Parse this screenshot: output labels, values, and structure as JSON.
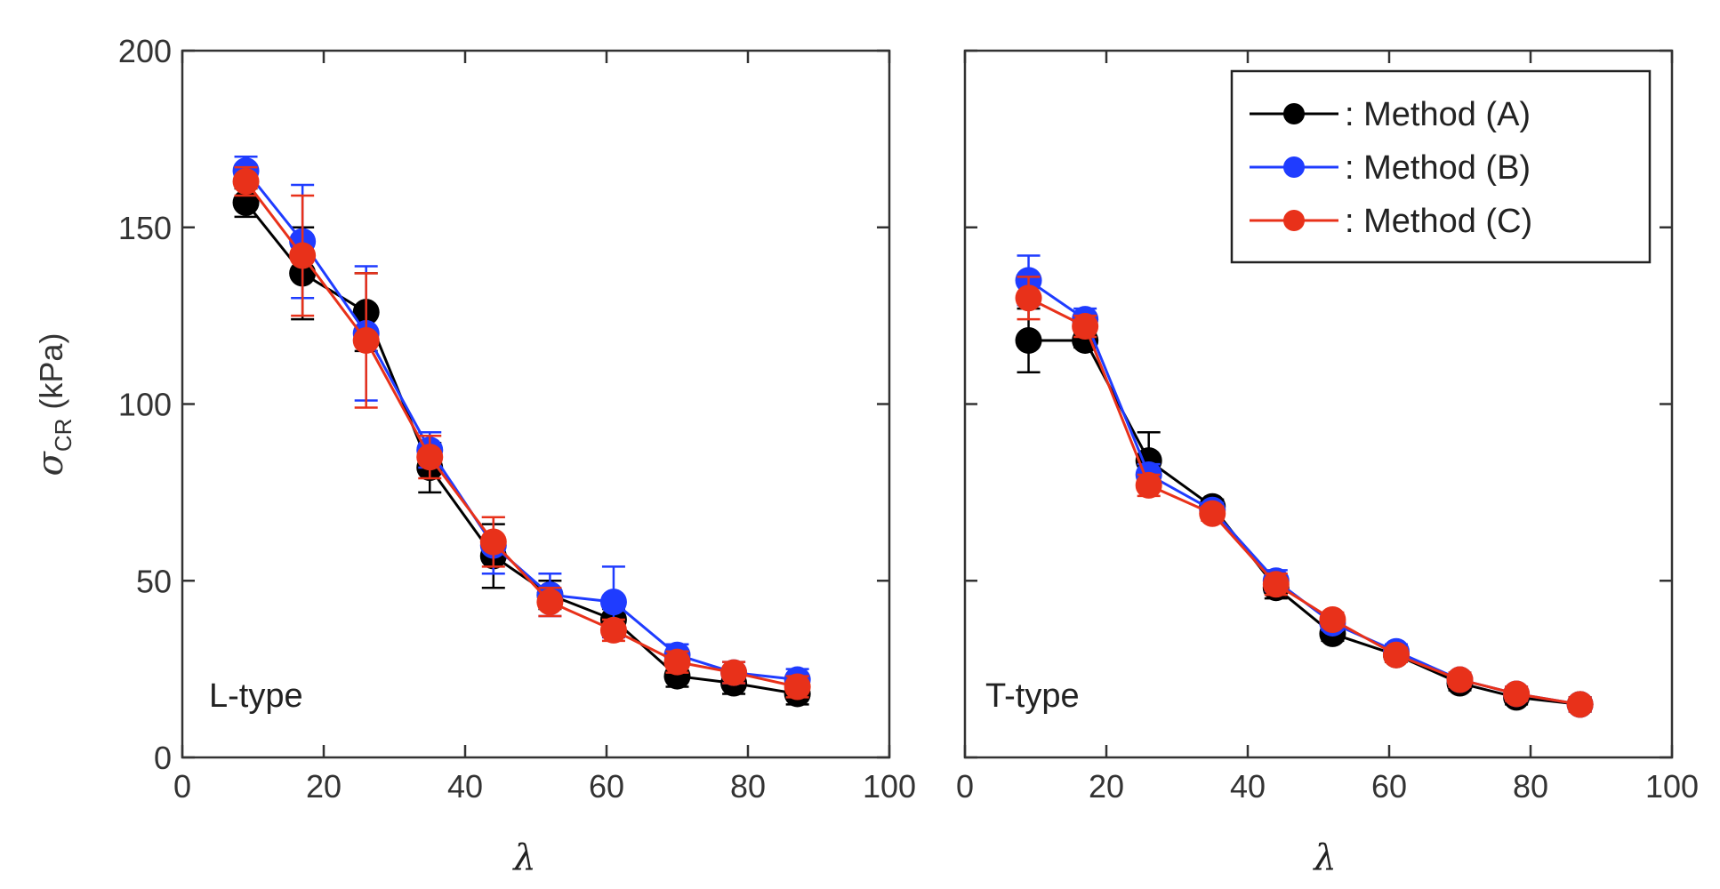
{
  "chart_data": [
    {
      "type": "line",
      "panel_label": "L-type",
      "xlabel": "λ",
      "ylabel": {
        "symbol": "σ",
        "subscript": "CR",
        "unit": "(kPa)"
      },
      "xlim": [
        0,
        100
      ],
      "ylim": [
        0,
        200
      ],
      "xticks": [
        "0",
        "20",
        "40",
        "60",
        "80",
        "100"
      ],
      "yticks": [
        "0",
        "50",
        "100",
        "150",
        "200"
      ],
      "x": [
        9,
        17,
        26,
        35,
        44,
        52,
        61,
        70,
        78,
        87
      ],
      "series": [
        {
          "name": "Method (A)",
          "color": "#000000",
          "values": [
            157,
            137,
            126,
            82,
            57,
            46,
            39,
            23,
            21,
            18
          ],
          "errors": [
            4,
            13,
            11,
            7,
            9,
            4,
            3,
            3,
            3,
            3
          ]
        },
        {
          "name": "Method (B)",
          "color": "#1f3cff",
          "values": [
            166,
            146,
            120,
            87,
            60,
            46,
            44,
            29,
            24,
            22
          ],
          "errors": [
            4,
            16,
            19,
            5,
            8,
            6,
            10,
            3,
            3,
            3
          ]
        },
        {
          "name": "Method (C)",
          "color": "#e8311a",
          "values": [
            163,
            142,
            118,
            85,
            61,
            44,
            36,
            27,
            24,
            20
          ],
          "errors": [
            4,
            17,
            19,
            6,
            7,
            4,
            3,
            3,
            3,
            3
          ]
        }
      ]
    },
    {
      "type": "line",
      "panel_label": "T-type",
      "xlabel": "λ",
      "xlim": [
        0,
        100
      ],
      "ylim": [
        0,
        200
      ],
      "xticks": [
        "0",
        "20",
        "40",
        "60",
        "80",
        "100"
      ],
      "yticks": [],
      "x": [
        9,
        17,
        26,
        35,
        44,
        52,
        61,
        70,
        78,
        87
      ],
      "series": [
        {
          "name": "Method (A)",
          "color": "#000000",
          "values": [
            118,
            118,
            84,
            71,
            48,
            35,
            29,
            21,
            17,
            15
          ],
          "errors": [
            9,
            2,
            8,
            2,
            3,
            2,
            2,
            2,
            2,
            2
          ]
        },
        {
          "name": "Method (B)",
          "color": "#1f3cff",
          "values": [
            135,
            124,
            80,
            70,
            50,
            38,
            30,
            22,
            18,
            15
          ],
          "errors": [
            7,
            3,
            3,
            2,
            3,
            2,
            2,
            2,
            2,
            2
          ]
        },
        {
          "name": "Method (C)",
          "color": "#e8311a",
          "values": [
            130,
            122,
            77,
            69,
            49,
            39,
            29,
            22,
            18,
            15
          ],
          "errors": [
            6,
            3,
            3,
            2,
            3,
            2,
            2,
            2,
            2,
            2
          ]
        }
      ],
      "legend": {
        "position": "top-right",
        "entries": [
          ": Method (A)",
          ": Method (B)",
          ": Method (C)"
        ]
      }
    }
  ]
}
